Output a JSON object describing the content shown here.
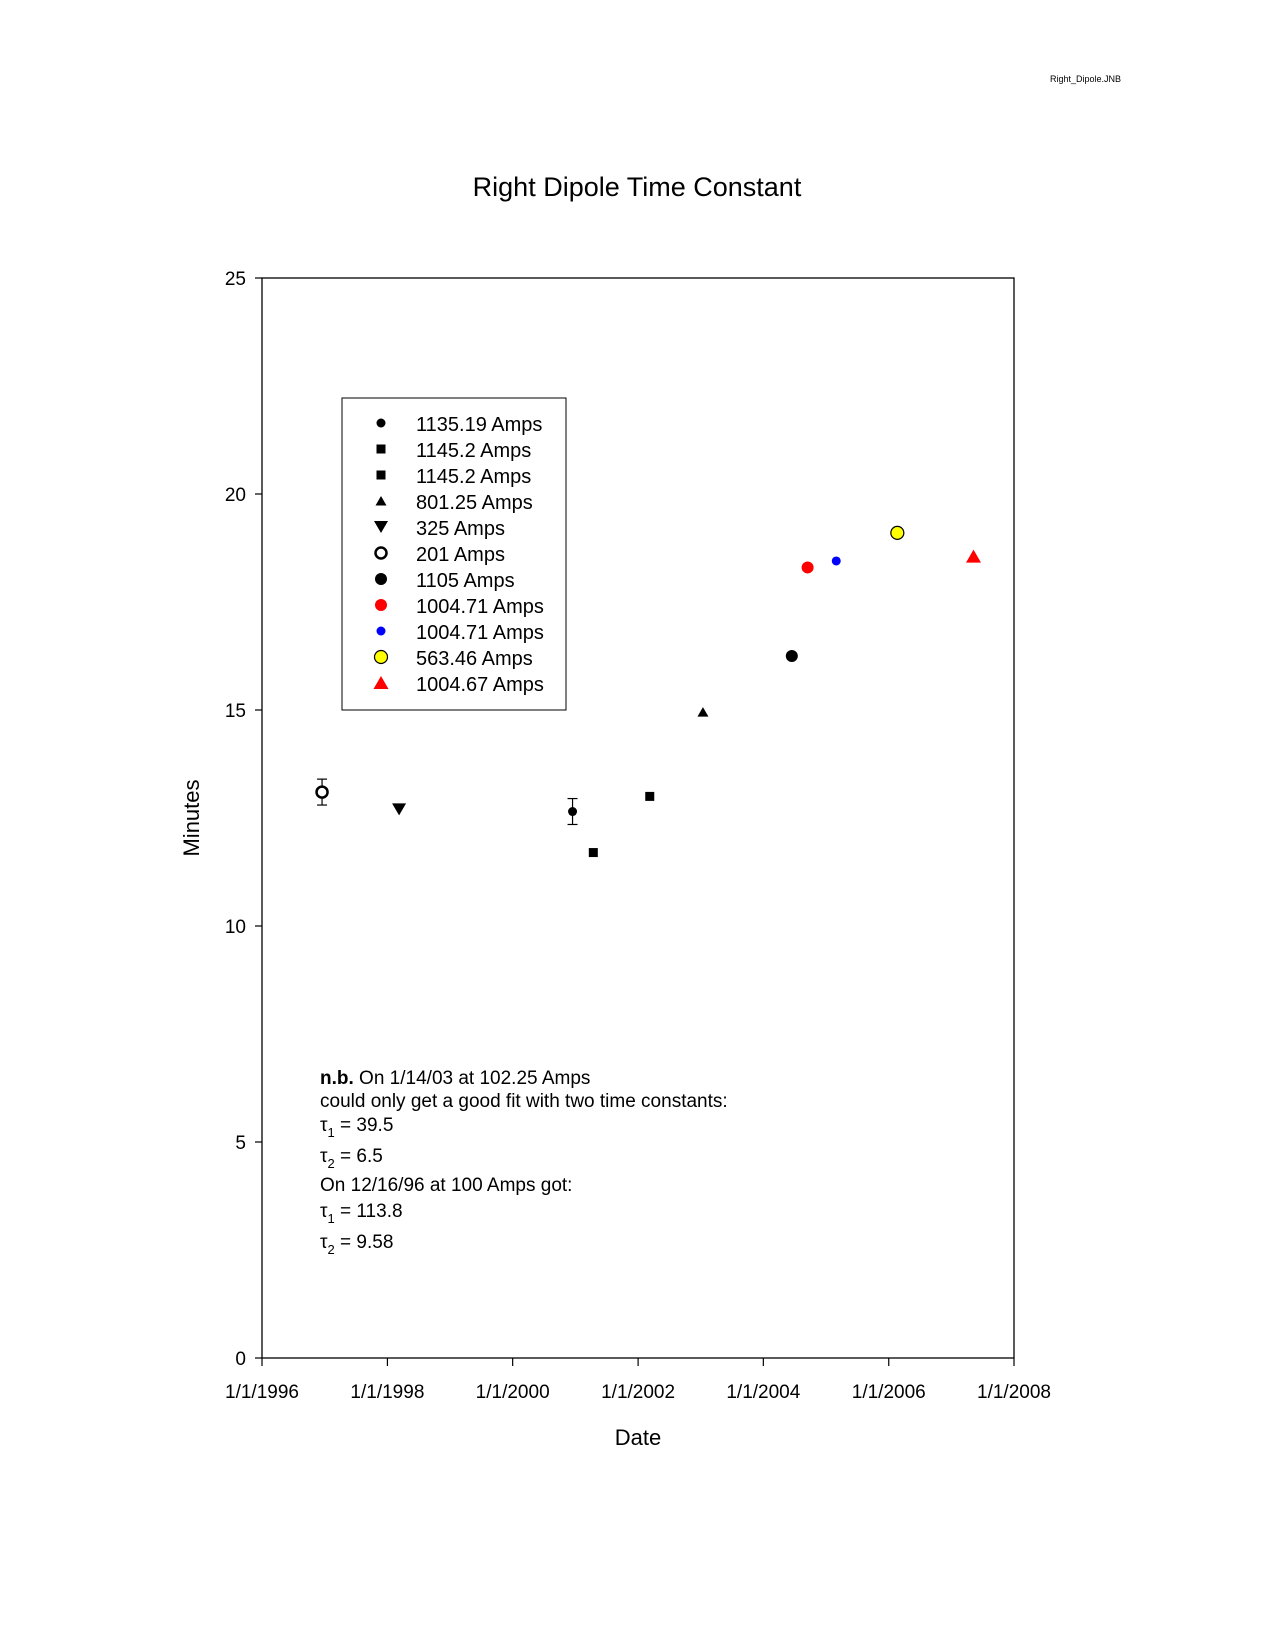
{
  "file_label": "Right_Dipole.JNB",
  "chart_data": {
    "type": "scatter",
    "title": "Right Dipole Time Constant",
    "xlabel": "Date",
    "ylabel": "Minutes",
    "xlim": [
      "1996-01-01",
      "2008-01-01"
    ],
    "ylim": [
      0,
      25
    ],
    "x_ticks": [
      "1/1/1996",
      "1/1/1998",
      "1/1/2000",
      "1/1/2002",
      "1/1/2004",
      "1/1/2006",
      "1/1/2008"
    ],
    "y_ticks": [
      "0",
      "5",
      "10",
      "15",
      "20",
      "25"
    ],
    "legend_position": "upper-left",
    "series": [
      {
        "name": "1135.19 Amps",
        "marker": "circle-small",
        "color": "#000000",
        "points": [
          {
            "x": "2000-12-15",
            "y": 12.65,
            "err": 0.3
          }
        ]
      },
      {
        "name": "1145.2 Amps",
        "marker": "square",
        "color": "#000000",
        "points": [
          {
            "x": "2001-04-15",
            "y": 11.7
          }
        ]
      },
      {
        "name": "1145.2 Amps",
        "marker": "square",
        "color": "#000000",
        "points": [
          {
            "x": "2002-03-10",
            "y": 13.0
          }
        ]
      },
      {
        "name": "801.25 Amps",
        "marker": "triangle-up",
        "color": "#000000",
        "points": [
          {
            "x": "2003-01-14",
            "y": 14.95
          }
        ]
      },
      {
        "name": "325 Amps",
        "marker": "triangle-down",
        "color": "#000000",
        "points": [
          {
            "x": "1998-03-10",
            "y": 12.7
          }
        ]
      },
      {
        "name": "201 Amps",
        "marker": "circle-open",
        "color": "#000000",
        "points": [
          {
            "x": "1996-12-16",
            "y": 13.1,
            "err": 0.3
          }
        ]
      },
      {
        "name": "1105 Amps",
        "marker": "circle",
        "color": "#000000",
        "points": [
          {
            "x": "2004-06-15",
            "y": 16.25
          }
        ]
      },
      {
        "name": "1004.71 Amps",
        "marker": "circle",
        "color": "#ff0000",
        "points": [
          {
            "x": "2004-09-15",
            "y": 18.3
          }
        ]
      },
      {
        "name": "1004.71 Amps",
        "marker": "circle-small",
        "color": "#0000ff",
        "points": [
          {
            "x": "2005-03-01",
            "y": 18.45
          }
        ]
      },
      {
        "name": "563.46 Amps",
        "marker": "circle-outlined",
        "color": "#ffff00",
        "points": [
          {
            "x": "2006-02-20",
            "y": 19.1
          }
        ]
      },
      {
        "name": "1004.67 Amps",
        "marker": "triangle-up-large",
        "color": "#ff0000",
        "points": [
          {
            "x": "2007-05-10",
            "y": 18.55
          }
        ]
      }
    ],
    "annotation": {
      "line1_bold": "n.b.",
      "line1_rest": " On 1/14/03 at 102.25 Amps",
      "line2": "could only get a good fit with two time constants:",
      "tau_symbol": "τ",
      "tau1_sub": "1",
      "tau2_sub": "2",
      "tau1_value_a": " = 39.5",
      "tau2_value_a": " = 6.5",
      "line5": "On 12/16/96 at 100 Amps got:",
      "tau1_value_b": " = 113.8",
      "tau2_value_b": " = 9.58"
    }
  }
}
